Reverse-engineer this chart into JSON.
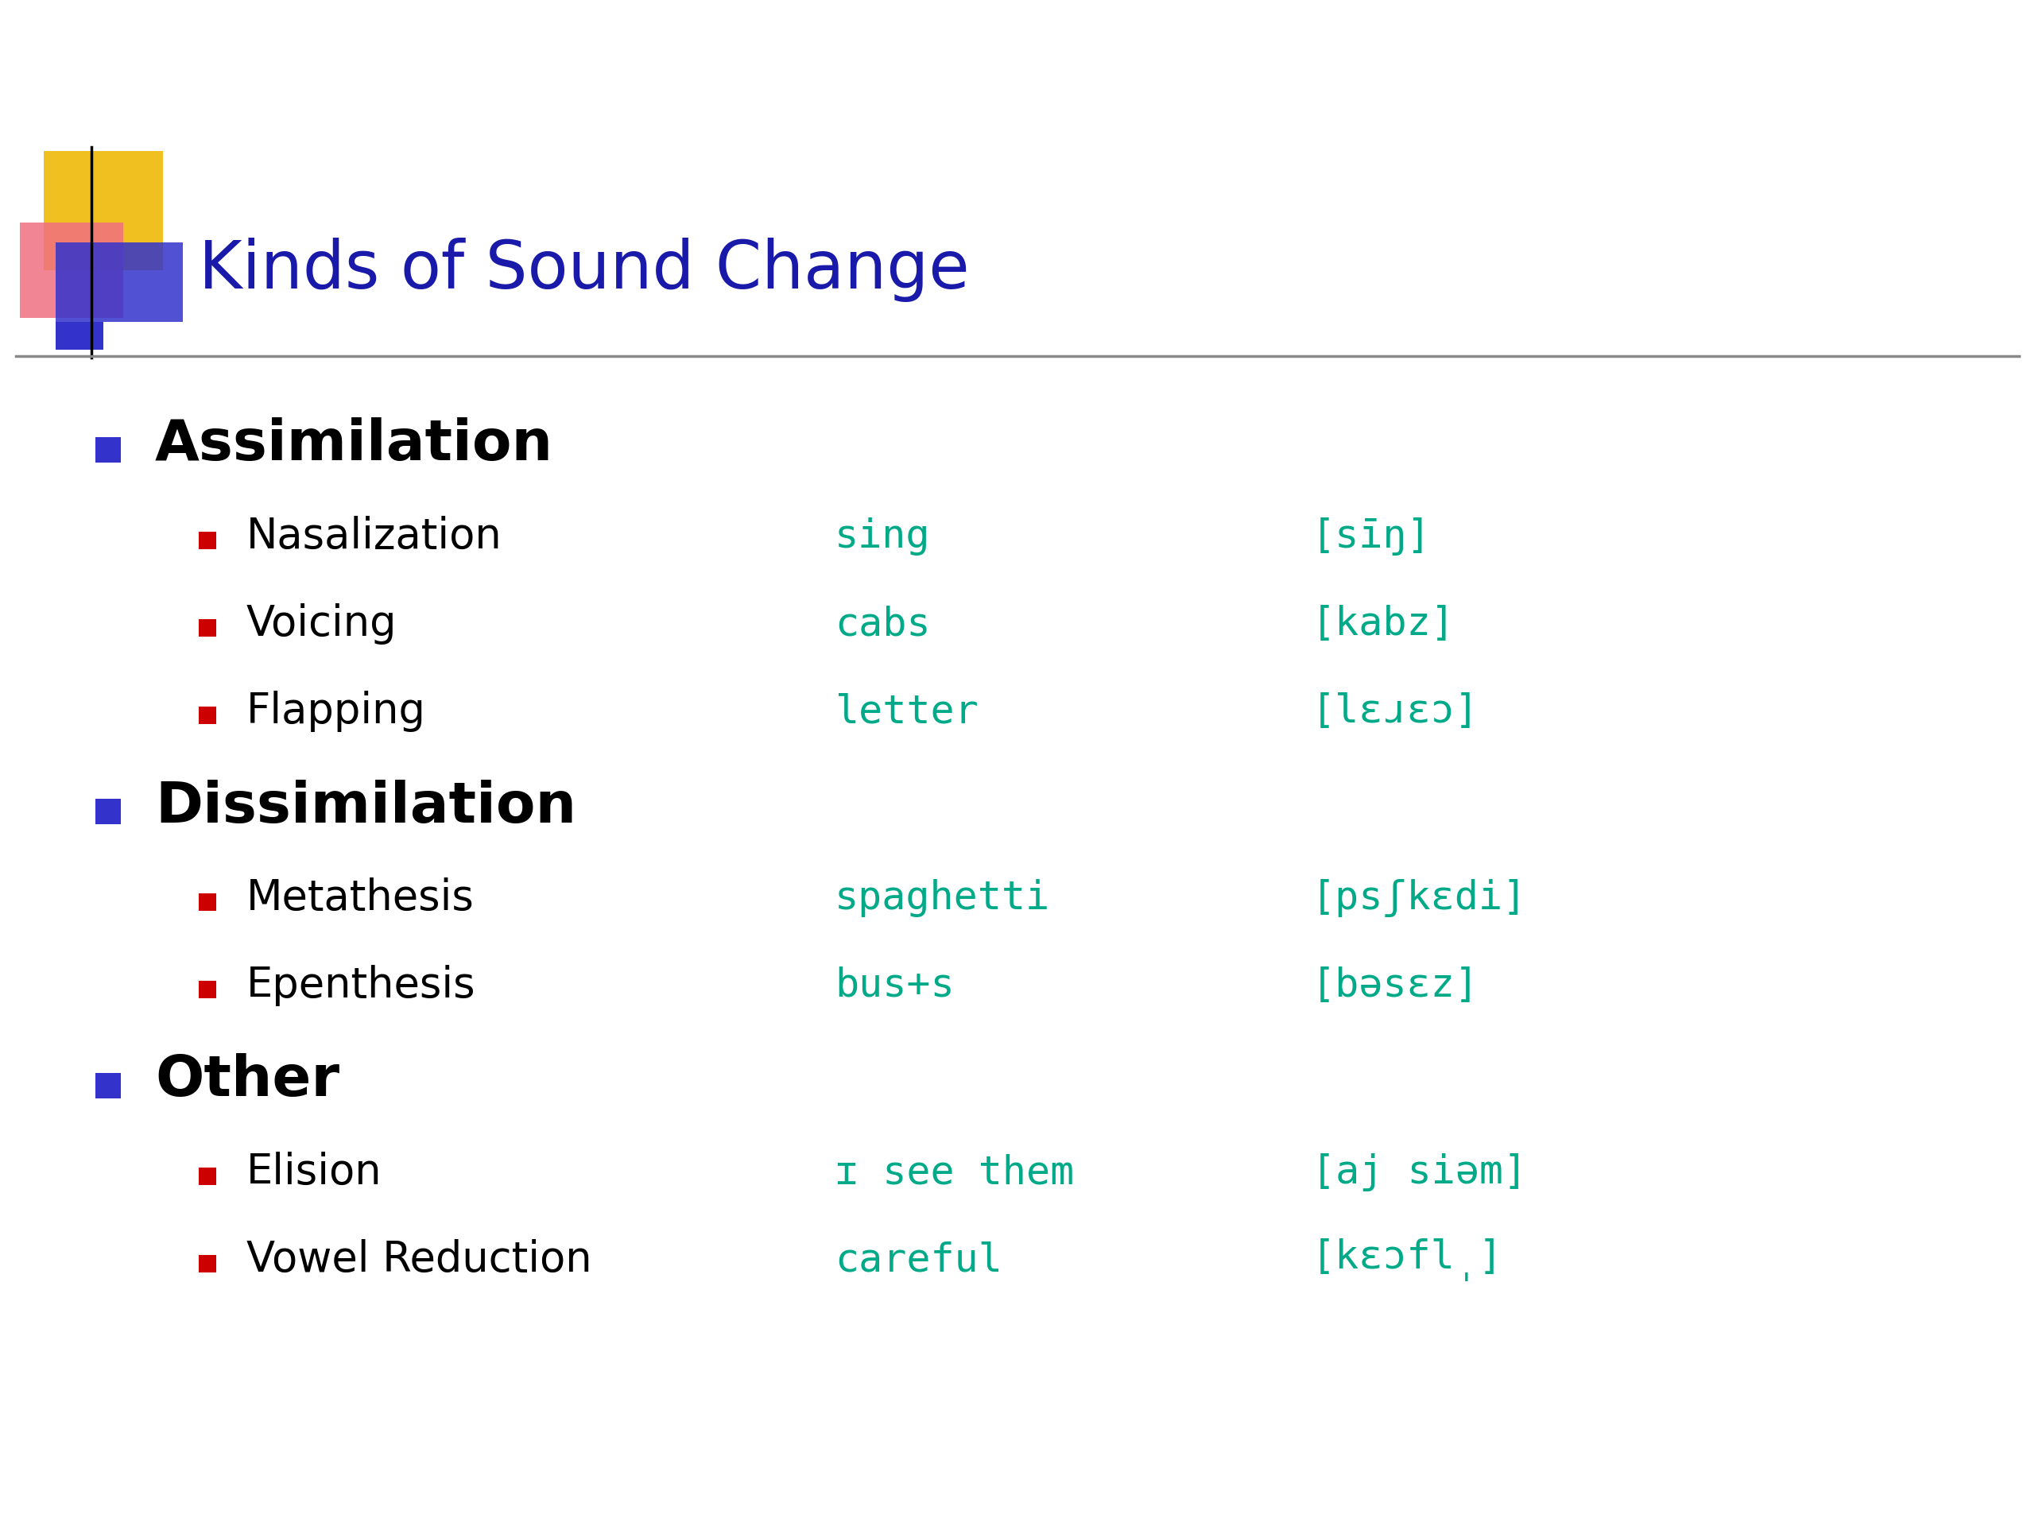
{
  "title": "Kinds of Sound Change",
  "title_color": "#1a1aaa",
  "title_fontsize": 60,
  "bg_color": "#ffffff",
  "separator_color": "#888888",
  "bullet_color_main": "#3333cc",
  "bullet_color_sub": "#cc0000",
  "items": [
    {
      "level": 0,
      "text": "Assimilation",
      "fontsize": 52,
      "bold": true,
      "color": "#000000",
      "example": "",
      "phonetic": ""
    },
    {
      "level": 1,
      "text": "Nasalization",
      "fontsize": 38,
      "bold": false,
      "color": "#000000",
      "example": "sing",
      "phonetic": "[sīŋ]"
    },
    {
      "level": 1,
      "text": "Voicing",
      "fontsize": 38,
      "bold": false,
      "color": "#000000",
      "example": "cabs",
      "phonetic": "[kabz]"
    },
    {
      "level": 1,
      "text": "Flapping",
      "fontsize": 38,
      "bold": false,
      "color": "#000000",
      "example": "letter",
      "phonetic": "[lɛɹɛɔ]"
    },
    {
      "level": 0,
      "text": "Dissimilation",
      "fontsize": 52,
      "bold": true,
      "color": "#000000",
      "example": "",
      "phonetic": ""
    },
    {
      "level": 1,
      "text": "Metathesis",
      "fontsize": 38,
      "bold": false,
      "color": "#000000",
      "example": "spaghetti",
      "phonetic": "[psʃkɛdi]"
    },
    {
      "level": 1,
      "text": "Epenthesis",
      "fontsize": 38,
      "bold": false,
      "color": "#000000",
      "example": "bus+s",
      "phonetic": "[bəsɛz]"
    },
    {
      "level": 0,
      "text": "Other",
      "fontsize": 52,
      "bold": true,
      "color": "#000000",
      "example": "",
      "phonetic": ""
    },
    {
      "level": 1,
      "text": "Elision",
      "fontsize": 38,
      "bold": false,
      "color": "#000000",
      "example": "ɪ see them",
      "phonetic": "[aj siəm]"
    },
    {
      "level": 1,
      "text": "Vowel Reduction",
      "fontsize": 38,
      "bold": false,
      "color": "#000000",
      "example": "careful",
      "phonetic": "[kɛɔfl̩]"
    }
  ],
  "example_color": "#00aa88",
  "phonetic_color_main": "#00aa88",
  "phonetic_color_highlight": "#cc0000",
  "phonetic_highlights": {
    "sing": "z",
    "cabs": "z",
    "letter": "",
    "spaghetti": "s",
    "bus+s": "",
    "careful": ""
  }
}
